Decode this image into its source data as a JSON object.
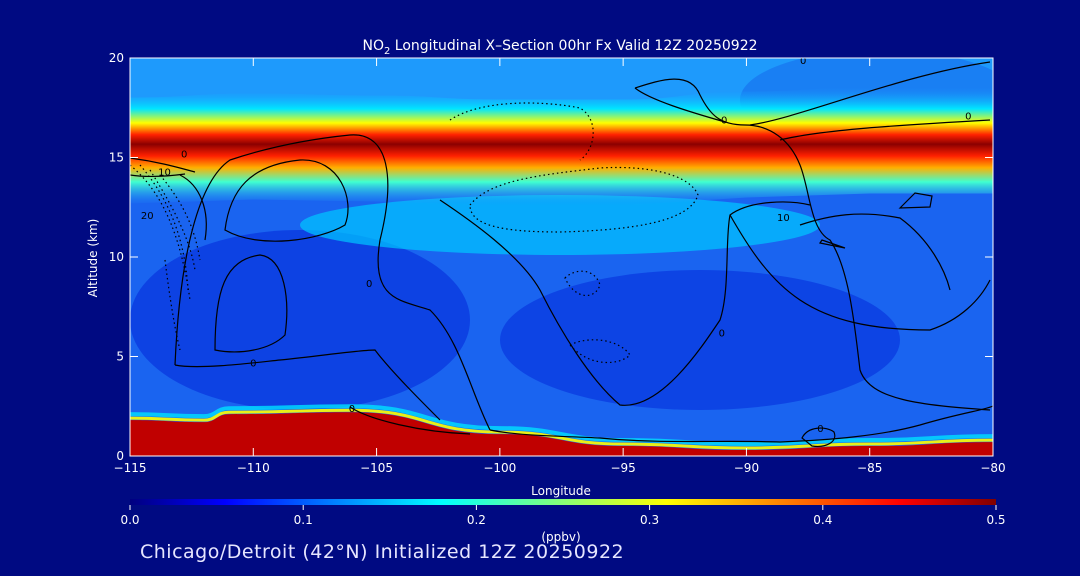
{
  "chart_data": {
    "type": "heatmap",
    "title": "NO",
    "title_sub": "2",
    "title_rest": " Longitudinal X–Section 00hr  Fx Valid 12Z 20250922",
    "xlabel": "Longitude",
    "ylabel": "Altitude (km)",
    "xlim": [
      -115,
      -80
    ],
    "ylim": [
      0,
      20
    ],
    "x_ticks": [
      -115,
      -110,
      -105,
      -100,
      -95,
      -90,
      -85,
      -80
    ],
    "x_tick_labels": [
      "−115",
      "−110",
      "−105",
      "−100",
      "−95",
      "−90",
      "−85",
      "−80"
    ],
    "y_ticks": [
      0,
      5,
      10,
      15,
      20
    ],
    "y_tick_labels": [
      "0",
      "5",
      "10",
      "15",
      "20"
    ],
    "colorbar": {
      "label": "(ppbv)",
      "range": [
        0.0,
        0.5
      ],
      "ticks": [
        0.0,
        0.1,
        0.2,
        0.3,
        0.4,
        0.5
      ],
      "tick_labels": [
        "0.0",
        "0.1",
        "0.2",
        "0.3",
        "0.4",
        "0.5"
      ]
    },
    "no2_max_layer": {
      "description": "NO2 maximum band near tropopause",
      "points": [
        [
          -115,
          15.1
        ],
        [
          -110,
          15.3
        ],
        [
          -105,
          15.2
        ],
        [
          -100,
          15.0
        ],
        [
          -95,
          15.0
        ],
        [
          -90,
          15.4
        ],
        [
          -85,
          15.6
        ],
        [
          -80,
          15.6
        ]
      ],
      "peak_value": 0.5
    },
    "surface_layer": {
      "points": [
        [
          -115,
          1.8
        ],
        [
          -112,
          1.7
        ],
        [
          -111,
          2.1
        ],
        [
          -106,
          2.2
        ],
        [
          -100,
          1.1
        ],
        [
          -95,
          0.5
        ],
        [
          -90,
          0.3
        ],
        [
          -85,
          0.5
        ],
        [
          -80,
          0.7
        ]
      ],
      "peak_value": 0.5
    },
    "contour_labels": [
      {
        "text": "0",
        "x": -112.8,
        "y": 15.0
      },
      {
        "text": "10",
        "x": -113.6,
        "y": 14.1
      },
      {
        "text": "20",
        "x": -114.3,
        "y": 11.9
      },
      {
        "text": "0",
        "x": -105.3,
        "y": 8.5
      },
      {
        "text": "0",
        "x": -110.0,
        "y": 4.5
      },
      {
        "text": "0",
        "x": -106.0,
        "y": 2.2
      },
      {
        "text": "0",
        "x": -91.0,
        "y": 6.0
      },
      {
        "text": "0",
        "x": -90.9,
        "y": 16.7
      },
      {
        "text": "0",
        "x": -87.7,
        "y": 19.7
      },
      {
        "text": "0",
        "x": -81.0,
        "y": 16.9
      },
      {
        "text": "10",
        "x": -88.5,
        "y": 11.8
      },
      {
        "text": "0",
        "x": -87.0,
        "y": 1.2
      }
    ]
  },
  "footer": "Chicago/Detroit (42°N) Initialized 12Z 20250922",
  "colors": {
    "background": "#000a82",
    "axis": "#ffffff",
    "contour": "#000000"
  }
}
